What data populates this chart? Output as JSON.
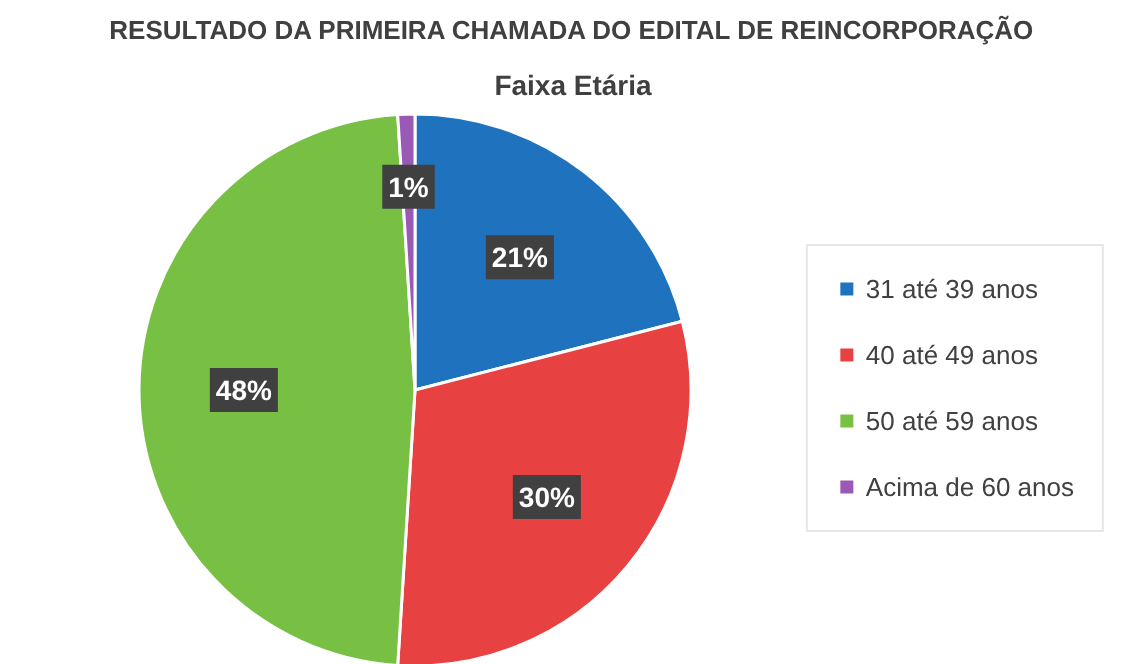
{
  "chart_data": {
    "type": "pie",
    "title": "RESULTADO DA PRIMEIRA CHAMADA DO EDITAL DE REINCORPORAÇÃO",
    "subtitle": "Faixa Etária",
    "categories": [
      "31 até 39 anos",
      "40 até 49 anos",
      "50 até 59 anos",
      "Acima de 60 anos"
    ],
    "values": [
      21,
      30,
      48,
      1
    ],
    "colors": [
      "#1f72bd",
      "#e84142",
      "#77c043",
      "#9b59b6"
    ],
    "value_labels": [
      "21%",
      "30%",
      "48%",
      "1%"
    ],
    "legend": "right"
  }
}
